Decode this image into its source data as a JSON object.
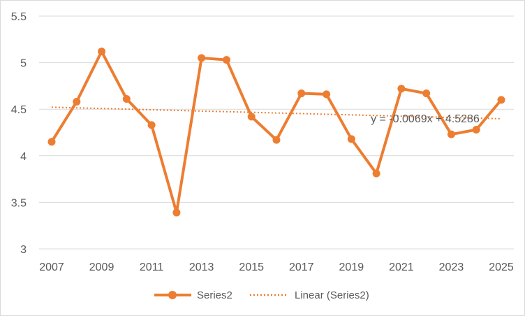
{
  "chart_data": {
    "type": "line",
    "title": "",
    "xlabel": "",
    "ylabel": "",
    "x": [
      2007,
      2008,
      2009,
      2010,
      2011,
      2012,
      2013,
      2014,
      2015,
      2016,
      2017,
      2018,
      2019,
      2020,
      2021,
      2022,
      2023,
      2024,
      2025
    ],
    "series": [
      {
        "name": "Series2",
        "values": [
          4.15,
          4.58,
          5.12,
          4.61,
          4.33,
          3.39,
          5.05,
          5.03,
          4.42,
          4.17,
          4.67,
          4.66,
          4.18,
          3.81,
          4.72,
          4.67,
          4.23,
          4.28,
          4.6
        ],
        "color": "#ED7D31"
      }
    ],
    "trendline": {
      "name": "Linear (Series2)",
      "slope": -0.0069,
      "intercept": 4.5286,
      "equation": "y = -0.0069x + 4.5286",
      "color": "#ED7D31"
    },
    "x_tick_labels": [
      "2007",
      "2009",
      "2011",
      "2013",
      "2015",
      "2017",
      "2019",
      "2021",
      "2023",
      "2025"
    ],
    "y_tick_labels": [
      "3",
      "3.5",
      "4",
      "4.5",
      "5",
      "5.5"
    ],
    "ylim": [
      3,
      5.5
    ],
    "grid": true,
    "legend_position": "bottom"
  }
}
